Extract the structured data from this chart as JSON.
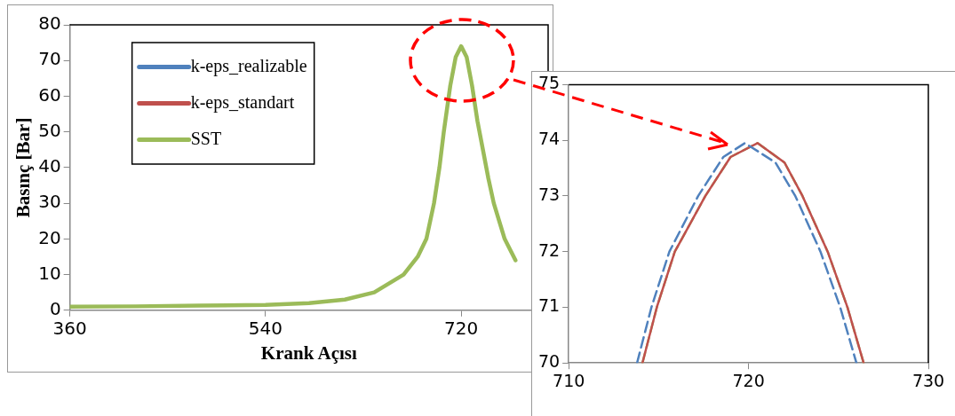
{
  "chart_data": [
    {
      "type": "line",
      "xlabel": "Krank Açısı",
      "ylabel": "Basınç [Bar]",
      "x": [
        360,
        420,
        480,
        540,
        580,
        613,
        640,
        667,
        680,
        688,
        695,
        700,
        704,
        710,
        715,
        720,
        725,
        730,
        735,
        740,
        745,
        750,
        760,
        770
      ],
      "xlim": [
        360,
        800
      ],
      "xticks": [
        360,
        540,
        720
      ],
      "ylim": [
        0,
        80
      ],
      "yticks": [
        0,
        10,
        20,
        30,
        40,
        50,
        60,
        70,
        80
      ],
      "legend": "top left",
      "line_style": "solid",
      "marker": "none",
      "series": [
        {
          "name": "k-eps_realizable",
          "color": "#4f81bd",
          "values": [
            null,
            null,
            null,
            null,
            null,
            null,
            null,
            null,
            null,
            null,
            null,
            null,
            null,
            null,
            null,
            null,
            null,
            null,
            null,
            null,
            null,
            null,
            null,
            null
          ]
        },
        {
          "name": "k-eps_standart",
          "color": "#c0504d",
          "values": [
            null,
            null,
            null,
            null,
            null,
            null,
            null,
            null,
            null,
            null,
            null,
            null,
            null,
            null,
            null,
            null,
            null,
            null,
            null,
            null,
            null,
            null,
            null,
            null
          ]
        },
        {
          "name": "SST",
          "color": "#9bbb59",
          "values": [
            1,
            1.1,
            1.3,
            1.5,
            2,
            3,
            5,
            10,
            15,
            20,
            30,
            40,
            50,
            63,
            71,
            74,
            71,
            63,
            53,
            45,
            37,
            30,
            20,
            14
          ]
        }
      ]
    },
    {
      "type": "line",
      "xlim": [
        710,
        730
      ],
      "xticks": [
        710,
        720,
        730
      ],
      "ylim": [
        70,
        75
      ],
      "yticks": [
        70,
        71,
        72,
        73,
        74,
        75
      ],
      "marker": "none",
      "series": [
        {
          "color": "#4f81bd",
          "line_style": "dashed",
          "x": [
            713.8,
            714.6,
            715.6,
            717.2,
            718.6,
            719.8,
            721.5,
            722.6,
            724,
            725.1,
            726
          ],
          "values": [
            70,
            71,
            72,
            73,
            73.7,
            73.95,
            73.6,
            73,
            72,
            71,
            70
          ]
        },
        {
          "color": "#c0504d",
          "line_style": "solid",
          "x": [
            714.1,
            714.9,
            715.9,
            717.6,
            719,
            720.5,
            722,
            723,
            724.4,
            725.5,
            726.4
          ],
          "values": [
            70,
            71,
            72,
            73,
            73.7,
            73.95,
            73.6,
            73,
            72,
            71,
            70
          ]
        },
        {
          "color": "#9bbb59",
          "line_style": "dashed",
          "x": [
            714.1,
            714.9,
            715.9,
            717.6,
            719,
            720.5,
            722,
            723,
            724.4,
            725.5,
            726.4
          ],
          "values": [
            70,
            71,
            72,
            73,
            73.7,
            73.95,
            73.6,
            73,
            72,
            71,
            70
          ]
        }
      ]
    }
  ]
}
